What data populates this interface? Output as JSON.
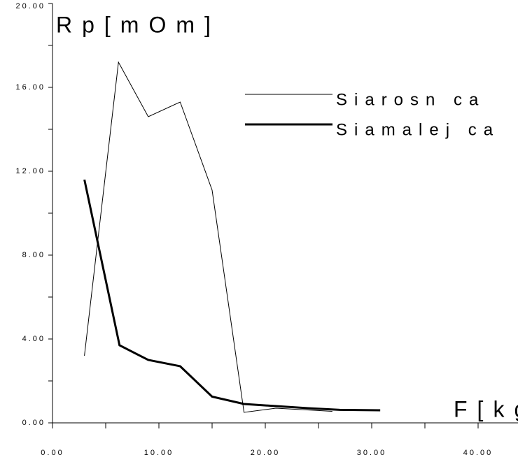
{
  "chart_data": {
    "type": "line",
    "y_label": "Rp[mOm]",
    "x_label": "F[kg]",
    "series": [
      {
        "name": "Siarosn ca",
        "color": "#000000",
        "width": 1,
        "x": [
          3.0,
          6.2,
          9.0,
          12.0,
          15.0,
          18.0,
          21.0,
          26.3
        ],
        "values": [
          3.2,
          17.2,
          14.6,
          15.3,
          11.1,
          0.5,
          0.7,
          0.55
        ]
      },
      {
        "name": "Siamalej ca",
        "color": "#000000",
        "width": 3,
        "x": [
          3.0,
          6.3,
          9.0,
          12.0,
          15.0,
          18.0,
          21.0,
          24.0,
          27.0,
          30.8
        ],
        "values": [
          11.6,
          3.7,
          3.0,
          2.7,
          1.25,
          0.9,
          0.8,
          0.7,
          0.62,
          0.6
        ]
      }
    ],
    "xlim": [
      0,
      40
    ],
    "ylim": [
      0,
      20
    ],
    "xticks": [
      {
        "value": 0,
        "label": "0.00"
      },
      {
        "value": 10,
        "label": "10.00"
      },
      {
        "value": 20,
        "label": "20.00"
      },
      {
        "value": 30,
        "label": "30.00"
      },
      {
        "value": 40,
        "label": "40.00"
      }
    ],
    "yticks": [
      {
        "value": 0,
        "label": "0.00"
      },
      {
        "value": 4,
        "label": "4.00"
      },
      {
        "value": 8,
        "label": "8.00"
      },
      {
        "value": 12,
        "label": "12.00"
      },
      {
        "value": 16,
        "label": "16.00"
      },
      {
        "value": 20,
        "label": "20.00"
      }
    ],
    "xminor": [
      5,
      15,
      25,
      35
    ],
    "yminor": [
      2,
      6,
      10,
      14,
      18
    ]
  }
}
